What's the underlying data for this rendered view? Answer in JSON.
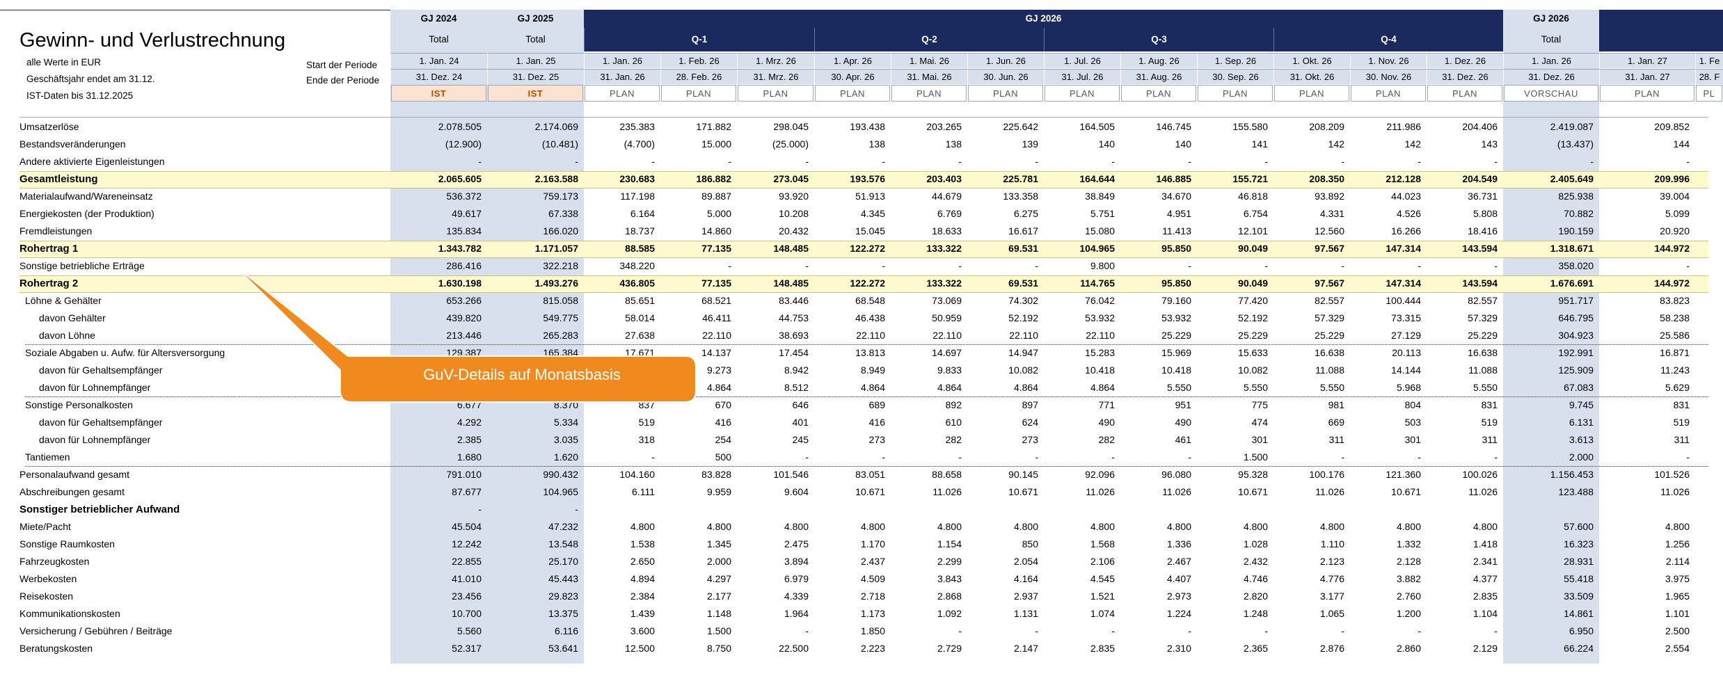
{
  "sheet": {
    "title": "Gewinn- und Verlustrechnung",
    "info": {
      "werte": "alle Werte in EUR",
      "gj_endet": "Geschäftsjahr endet am 31.12.",
      "ist_daten": "IST-Daten bis 31.12.2025",
      "start_label": "Start der Periode",
      "ende_label": "Ende der Periode"
    },
    "callout": "GuV-Details auf Monatsbasis",
    "group_labels": {
      "gj2024": "GJ 2024",
      "gj2025": "GJ 2025",
      "gj2026": "GJ 2026",
      "gj2026_total": "GJ 2026"
    },
    "quarters": [
      "Q-1",
      "Q-2",
      "Q-3",
      "Q-4"
    ],
    "total_label": "Total",
    "columns": [
      {
        "start": "1. Jan. 24",
        "end": "31. Dez. 24",
        "type": "IST"
      },
      {
        "start": "1. Jan. 25",
        "end": "31. Dez. 25",
        "type": "IST"
      },
      {
        "start": "1. Jan. 26",
        "end": "31. Jan. 26",
        "type": "PLAN"
      },
      {
        "start": "1. Feb. 26",
        "end": "28. Feb. 26",
        "type": "PLAN"
      },
      {
        "start": "1. Mrz. 26",
        "end": "31. Mrz. 26",
        "type": "PLAN"
      },
      {
        "start": "1. Apr. 26",
        "end": "30. Apr. 26",
        "type": "PLAN"
      },
      {
        "start": "1. Mai. 26",
        "end": "31. Mai. 26",
        "type": "PLAN"
      },
      {
        "start": "1. Jun. 26",
        "end": "30. Jun. 26",
        "type": "PLAN"
      },
      {
        "start": "1. Jul. 26",
        "end": "31. Jul. 26",
        "type": "PLAN"
      },
      {
        "start": "1. Aug. 26",
        "end": "31. Aug. 26",
        "type": "PLAN"
      },
      {
        "start": "1. Sep. 26",
        "end": "30. Sep. 26",
        "type": "PLAN"
      },
      {
        "start": "1. Okt. 26",
        "end": "31. Okt. 26",
        "type": "PLAN"
      },
      {
        "start": "1. Nov. 26",
        "end": "30. Nov. 26",
        "type": "PLAN"
      },
      {
        "start": "1. Dez. 26",
        "end": "31. Dez. 26",
        "type": "PLAN"
      },
      {
        "start": "1. Jan. 26",
        "end": "31. Dez. 26",
        "type": "VORSCHAU"
      },
      {
        "start": "1. Jan. 27",
        "end": "31. Jan. 27",
        "type": "PLAN"
      },
      {
        "start": "1. Fe",
        "end": "28. F",
        "type": "PL"
      }
    ],
    "rows": [
      {
        "label": "Umsatzerlöse",
        "v": [
          "2.078.505",
          "2.174.069",
          "235.383",
          "171.882",
          "298.045",
          "193.438",
          "203.265",
          "225.642",
          "164.505",
          "146.745",
          "155.580",
          "208.209",
          "211.986",
          "204.406",
          "2.419.087",
          "209.852",
          ""
        ]
      },
      {
        "label": "Bestandsveränderungen",
        "v": [
          "(12.900)",
          "(10.481)",
          "(4.700)",
          "15.000",
          "(25.000)",
          "138",
          "138",
          "139",
          "140",
          "140",
          "141",
          "142",
          "142",
          "143",
          "(13.437)",
          "144",
          ""
        ]
      },
      {
        "label": "Andere aktivierte Eigenleistungen",
        "v": [
          "-",
          "-",
          "-",
          "-",
          "-",
          "-",
          "-",
          "-",
          "-",
          "-",
          "-",
          "-",
          "-",
          "-",
          "-",
          "-",
          ""
        ]
      },
      {
        "label": "Gesamtleistung",
        "style": "hl",
        "v": [
          "2.065.605",
          "2.163.588",
          "230.683",
          "186.882",
          "273.045",
          "193.576",
          "203.403",
          "225.781",
          "164.644",
          "146.885",
          "155.721",
          "208.350",
          "212.128",
          "204.549",
          "2.405.649",
          "209.996",
          ""
        ]
      },
      {
        "label": "Materialaufwand/Wareneinsatz",
        "v": [
          "536.372",
          "759.173",
          "117.198",
          "89.887",
          "93.920",
          "51.913",
          "44.679",
          "133.358",
          "38.849",
          "34.670",
          "46.818",
          "93.892",
          "44.023",
          "36.731",
          "825.938",
          "39.004",
          ""
        ]
      },
      {
        "label": "Energiekosten (der Produktion)",
        "v": [
          "49.617",
          "67.338",
          "6.164",
          "5.000",
          "10.208",
          "4.345",
          "6.769",
          "6.275",
          "5.751",
          "4.951",
          "6.754",
          "4.331",
          "4.526",
          "5.808",
          "70.882",
          "5.099",
          ""
        ]
      },
      {
        "label": "Fremdleistungen",
        "v": [
          "135.834",
          "166.020",
          "18.737",
          "14.860",
          "20.432",
          "15.045",
          "18.633",
          "16.617",
          "15.080",
          "11.413",
          "12.101",
          "12.560",
          "16.266",
          "18.416",
          "190.159",
          "20.920",
          ""
        ]
      },
      {
        "label": "Rohertrag 1",
        "style": "hl",
        "v": [
          "1.343.782",
          "1.171.057",
          "88.585",
          "77.135",
          "148.485",
          "122.272",
          "133.322",
          "69.531",
          "104.965",
          "95.850",
          "90.049",
          "97.567",
          "147.314",
          "143.594",
          "1.318.671",
          "144.972",
          ""
        ]
      },
      {
        "label": "Sonstige betriebliche Erträge",
        "v": [
          "286.416",
          "322.218",
          "348.220",
          "-",
          "-",
          "-",
          "-",
          "-",
          "9.800",
          "-",
          "-",
          "-",
          "-",
          "-",
          "358.020",
          "-",
          ""
        ]
      },
      {
        "label": "Rohertrag 2",
        "style": "hl",
        "v": [
          "1.630.198",
          "1.493.276",
          "436.805",
          "77.135",
          "148.485",
          "122.272",
          "133.322",
          "69.531",
          "114.765",
          "95.850",
          "90.049",
          "97.567",
          "147.314",
          "143.594",
          "1.676.691",
          "144.972",
          ""
        ]
      },
      {
        "label": "Löhne & Gehälter",
        "indent": 1,
        "v": [
          "653.266",
          "815.058",
          "85.651",
          "68.521",
          "83.446",
          "68.548",
          "73.069",
          "74.302",
          "76.042",
          "79.160",
          "77.420",
          "82.557",
          "100.444",
          "82.557",
          "951.717",
          "83.823",
          ""
        ]
      },
      {
        "label": "davon Gehälter",
        "indent": 2,
        "v": [
          "439.820",
          "549.775",
          "58.014",
          "46.411",
          "44.753",
          "46.438",
          "50.959",
          "52.192",
          "53.932",
          "53.932",
          "52.192",
          "57.329",
          "73.315",
          "57.329",
          "646.795",
          "58.238",
          ""
        ]
      },
      {
        "label": "davon Löhne",
        "indent": 2,
        "v": [
          "213.446",
          "265.283",
          "27.638",
          "22.110",
          "38.693",
          "22.110",
          "22.110",
          "22.110",
          "22.110",
          "25.229",
          "25.229",
          "25.229",
          "27.129",
          "25.229",
          "304.923",
          "25.586",
          ""
        ]
      },
      {
        "label": "Soziale Abgaben u. Aufw. für Altersversorgung",
        "indent": 1,
        "dotted": true,
        "v": [
          "129.387",
          "165.384",
          "17.671",
          "14.137",
          "17.454",
          "13.813",
          "14.697",
          "14.947",
          "15.283",
          "15.969",
          "15.633",
          "16.638",
          "20.113",
          "16.638",
          "192.991",
          "16.871",
          ""
        ]
      },
      {
        "label": "davon für Gehaltsempfänger",
        "indent": 2,
        "v": [
          "",
          "",
          "",
          "9.273",
          "8.942",
          "8.949",
          "9.833",
          "10.082",
          "10.418",
          "10.418",
          "10.082",
          "11.088",
          "14.144",
          "11.088",
          "125.909",
          "11.243",
          ""
        ]
      },
      {
        "label": "davon für Lohnempfänger",
        "indent": 2,
        "v": [
          "",
          "",
          "",
          "4.864",
          "8.512",
          "4.864",
          "4.864",
          "4.864",
          "4.864",
          "5.550",
          "5.550",
          "5.550",
          "5.968",
          "5.550",
          "67.083",
          "5.629",
          ""
        ]
      },
      {
        "label": "Sonstige Personalkosten",
        "indent": 1,
        "dotted": true,
        "v": [
          "6.677",
          "8.370",
          "837",
          "670",
          "646",
          "689",
          "892",
          "897",
          "771",
          "951",
          "775",
          "981",
          "804",
          "831",
          "9.745",
          "831",
          ""
        ]
      },
      {
        "label": "davon für Gehaltsempfänger",
        "indent": 2,
        "v": [
          "4.292",
          "5.334",
          "519",
          "416",
          "401",
          "416",
          "610",
          "624",
          "490",
          "490",
          "474",
          "669",
          "503",
          "519",
          "6.131",
          "519",
          ""
        ]
      },
      {
        "label": "davon für Lohnempfänger",
        "indent": 2,
        "v": [
          "2.385",
          "3.035",
          "318",
          "254",
          "245",
          "273",
          "282",
          "273",
          "282",
          "461",
          "301",
          "311",
          "301",
          "311",
          "3.613",
          "311",
          ""
        ]
      },
      {
        "label": "Tantiemen",
        "indent": 1,
        "v": [
          "1.680",
          "1.620",
          "-",
          "500",
          "-",
          "-",
          "-",
          "-",
          "-",
          "-",
          "1.500",
          "-",
          "-",
          "-",
          "2.000",
          "-",
          ""
        ]
      },
      {
        "label": "Personalaufwand gesamt",
        "dotted": true,
        "v": [
          "791.010",
          "990.432",
          "104.160",
          "83.828",
          "101.546",
          "83.051",
          "88.658",
          "90.145",
          "92.096",
          "96.080",
          "95.328",
          "100.176",
          "121.360",
          "100.026",
          "1.156.453",
          "101.526",
          ""
        ]
      },
      {
        "label": "Abschreibungen gesamt",
        "v": [
          "87.677",
          "104.965",
          "6.111",
          "9.959",
          "9.604",
          "10.671",
          "11.026",
          "10.671",
          "11.026",
          "11.026",
          "10.671",
          "11.026",
          "10.671",
          "11.026",
          "123.488",
          "11.026",
          ""
        ]
      },
      {
        "label": "Sonstiger betrieblicher Aufwand",
        "bold": true,
        "v": [
          "-",
          "-",
          "",
          "",
          "",
          "",
          "",
          "",
          "",
          "",
          "",
          "",
          "",
          "",
          "",
          "",
          ""
        ]
      },
      {
        "label": "Miete/Pacht",
        "v": [
          "45.504",
          "47.232",
          "4.800",
          "4.800",
          "4.800",
          "4.800",
          "4.800",
          "4.800",
          "4.800",
          "4.800",
          "4.800",
          "4.800",
          "4.800",
          "4.800",
          "57.600",
          "4.800",
          ""
        ]
      },
      {
        "label": "Sonstige Raumkosten",
        "v": [
          "12.242",
          "13.548",
          "1.538",
          "1.345",
          "2.475",
          "1.170",
          "1.154",
          "850",
          "1.568",
          "1.336",
          "1.028",
          "1.110",
          "1.332",
          "1.418",
          "16.323",
          "1.256",
          ""
        ]
      },
      {
        "label": "Fahrzeugkosten",
        "v": [
          "22.855",
          "25.170",
          "2.650",
          "2.000",
          "3.894",
          "2.437",
          "2.299",
          "2.054",
          "2.106",
          "2.467",
          "2.432",
          "2.123",
          "2.128",
          "2.341",
          "28.931",
          "2.114",
          ""
        ]
      },
      {
        "label": "Werbekosten",
        "v": [
          "41.010",
          "45.443",
          "4.894",
          "4.297",
          "6.979",
          "4.509",
          "3.843",
          "4.164",
          "4.545",
          "4.407",
          "4.746",
          "4.776",
          "3.882",
          "4.377",
          "55.418",
          "3.975",
          ""
        ]
      },
      {
        "label": "Reisekosten",
        "v": [
          "23.456",
          "29.823",
          "2.384",
          "2.177",
          "4.339",
          "2.718",
          "2.868",
          "2.937",
          "1.521",
          "2.973",
          "2.820",
          "3.177",
          "2.760",
          "2.835",
          "33.509",
          "1.965",
          ""
        ]
      },
      {
        "label": "Kommunikationskosten",
        "v": [
          "10.700",
          "13.375",
          "1.439",
          "1.148",
          "1.964",
          "1.173",
          "1.092",
          "1.131",
          "1.074",
          "1.224",
          "1.248",
          "1.065",
          "1.200",
          "1.104",
          "14.861",
          "1.101",
          ""
        ]
      },
      {
        "label": "Versicherung / Gebühren / Beiträge",
        "v": [
          "5.560",
          "6.116",
          "3.600",
          "1.500",
          "-",
          "1.850",
          "-",
          "-",
          "-",
          "-",
          "-",
          "-",
          "-",
          "-",
          "6.950",
          "2.500",
          ""
        ]
      },
      {
        "label": "Beratungskosten",
        "v": [
          "52.317",
          "53.641",
          "12.500",
          "8.750",
          "22.500",
          "2.223",
          "2.729",
          "2.147",
          "2.835",
          "2.310",
          "2.365",
          "2.876",
          "2.860",
          "2.129",
          "66.224",
          "2.554",
          ""
        ]
      }
    ]
  },
  "colors": {
    "header_dark": "#1b2a5e",
    "header_light": "#d7e0ec",
    "ist_bg": "#fbe3d1",
    "ist_text": "#b94d00",
    "highlight_row": "#fffacd",
    "callout": "#f08a1e"
  }
}
